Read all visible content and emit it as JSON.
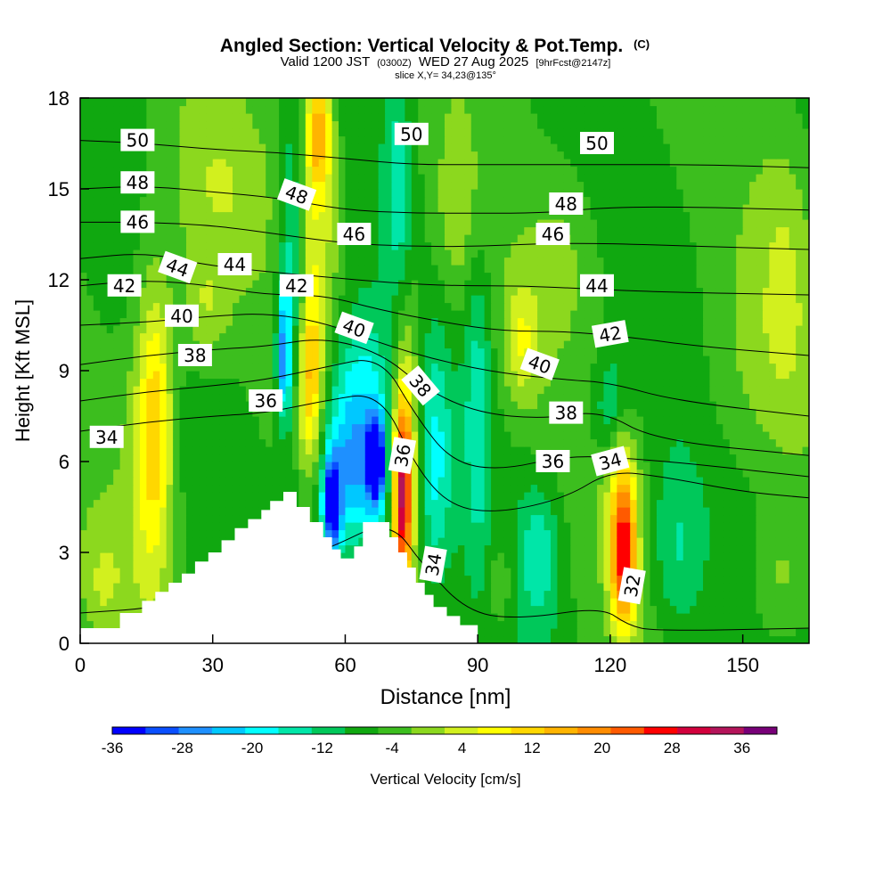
{
  "chart_data": {
    "type": "heatmap",
    "title": "Angled Section: Vertical Velocity & Pot.Temp.",
    "title_unit": "(C)",
    "subtitle_valid": "Valid 1200 JST",
    "subtitle_utc": "(0300Z)",
    "subtitle_date": "WED 27 Aug 2025",
    "subtitle_fcst": "[9hrFcst@2147z]",
    "slice_label": "slice X,Y= 34,23@135°",
    "xlabel": "Distance [nm]",
    "ylabel": "Height [Kft MSL]",
    "xlim": [
      0,
      165
    ],
    "ylim": [
      0,
      18
    ],
    "xticks": [
      "0",
      "30",
      "60",
      "90",
      "120",
      "150"
    ],
    "xtick_values": [
      0,
      30,
      60,
      90,
      120,
      150
    ],
    "yticks": [
      "0",
      "3",
      "6",
      "9",
      "12",
      "15",
      "18"
    ],
    "ytick_values": [
      0,
      3,
      6,
      9,
      12,
      15,
      18
    ],
    "colorbar": {
      "label": "Vertical Velocity [cm/s]",
      "ticks": [
        "-36",
        "-28",
        "-20",
        "-12",
        "-4",
        "4",
        "12",
        "20",
        "28",
        "36"
      ],
      "levels": [
        -36,
        -32,
        -28,
        -24,
        -20,
        -16,
        -12,
        -8,
        -4,
        0,
        4,
        8,
        12,
        16,
        20,
        24,
        28,
        32,
        36,
        40
      ],
      "colors": [
        "#0000ff",
        "#0a4fff",
        "#1e90ff",
        "#00c8ff",
        "#00ffff",
        "#00e6a8",
        "#00c85a",
        "#10a810",
        "#3cbe1e",
        "#8cd81e",
        "#d2f01e",
        "#ffff00",
        "#ffd700",
        "#ffb400",
        "#ff8c00",
        "#ff5a00",
        "#ff0000",
        "#d2003c",
        "#b4145a",
        "#780078"
      ]
    },
    "background_level": -4,
    "velocity_features": [
      {
        "x": 17,
        "z": 7.5,
        "rx": 4,
        "rz": 4.5,
        "value": 16
      },
      {
        "x": 15,
        "z": 6,
        "rx": 6,
        "rz": 6,
        "value": 6
      },
      {
        "x": 30,
        "z": 15,
        "rx": 12,
        "rz": 3,
        "value": 6
      },
      {
        "x": 28,
        "z": 11,
        "rx": 6,
        "rz": 2,
        "value": 8
      },
      {
        "x": 48,
        "z": 12,
        "rx": 3,
        "rz": 5,
        "value": -14
      },
      {
        "x": 46,
        "z": 9.5,
        "rx": 1.5,
        "rz": 2,
        "value": -20
      },
      {
        "x": 52,
        "z": 8.5,
        "rx": 3,
        "rz": 3,
        "value": 20
      },
      {
        "x": 54,
        "z": 17,
        "rx": 3,
        "rz": 2,
        "value": 20
      },
      {
        "x": 54,
        "z": 14,
        "rx": 5,
        "rz": 4,
        "value": 10
      },
      {
        "x": 62,
        "z": 6,
        "rx": 8,
        "rz": 3,
        "value": -24
      },
      {
        "x": 57,
        "z": 4.5,
        "rx": 2,
        "rz": 1.5,
        "value": -30
      },
      {
        "x": 67,
        "z": 6,
        "rx": 2,
        "rz": 1.5,
        "value": -30
      },
      {
        "x": 64,
        "z": 9.5,
        "rx": 7,
        "rz": 2,
        "value": -6
      },
      {
        "x": 73,
        "z": 5,
        "rx": 2,
        "rz": 3,
        "value": 34
      },
      {
        "x": 74,
        "z": 7,
        "rx": 4,
        "rz": 5,
        "value": 14
      },
      {
        "x": 72,
        "z": 15,
        "rx": 3,
        "rz": 4,
        "value": -10
      },
      {
        "x": 80,
        "z": 6,
        "rx": 4,
        "rz": 4,
        "value": -12
      },
      {
        "x": 90,
        "z": 8,
        "rx": 3,
        "rz": 5,
        "value": -10
      },
      {
        "x": 85,
        "z": 14,
        "rx": 5,
        "rz": 3,
        "value": 6
      },
      {
        "x": 100,
        "z": 10,
        "rx": 4,
        "rz": 2,
        "value": 10
      },
      {
        "x": 104,
        "z": 3,
        "rx": 5,
        "rz": 2.5,
        "value": -10
      },
      {
        "x": 110,
        "z": 13,
        "rx": 8,
        "rz": 3,
        "value": 4
      },
      {
        "x": 123,
        "z": 3,
        "rx": 3,
        "rz": 2.5,
        "value": 34
      },
      {
        "x": 122,
        "z": 6,
        "rx": 4,
        "rz": 2,
        "value": 8
      },
      {
        "x": 120,
        "z": 7.5,
        "rx": 4,
        "rz": 2,
        "value": -10
      },
      {
        "x": 135,
        "z": 3,
        "rx": 6,
        "rz": 3,
        "value": -8
      },
      {
        "x": 150,
        "z": 9,
        "rx": 10,
        "rz": 4,
        "value": 4
      },
      {
        "x": 160,
        "z": 12,
        "rx": 6,
        "rz": 5,
        "value": 6
      },
      {
        "x": 158,
        "z": 2,
        "rx": 6,
        "rz": 2,
        "value": 6
      },
      {
        "x": 5,
        "z": 2,
        "rx": 5,
        "rz": 2,
        "value": 6
      },
      {
        "x": 95,
        "z": 2,
        "rx": 3,
        "rz": 1.5,
        "value": 6
      }
    ],
    "terrain": [
      [
        0,
        0.5
      ],
      [
        9,
        0.5
      ],
      [
        9,
        1.0
      ],
      [
        14,
        1.0
      ],
      [
        14,
        1.4
      ],
      [
        17,
        1.4
      ],
      [
        17,
        1.7
      ],
      [
        20,
        1.7
      ],
      [
        20,
        2.0
      ],
      [
        23,
        2.0
      ],
      [
        23,
        2.3
      ],
      [
        26,
        2.3
      ],
      [
        26,
        2.7
      ],
      [
        29,
        2.7
      ],
      [
        29,
        3.0
      ],
      [
        32,
        3.0
      ],
      [
        32,
        3.4
      ],
      [
        35,
        3.4
      ],
      [
        35,
        3.8
      ],
      [
        38,
        3.8
      ],
      [
        38,
        4.1
      ],
      [
        41,
        4.1
      ],
      [
        41,
        4.4
      ],
      [
        43,
        4.4
      ],
      [
        43,
        4.7
      ],
      [
        46,
        4.7
      ],
      [
        46,
        5.0
      ],
      [
        49,
        5.0
      ],
      [
        49,
        4.5
      ],
      [
        52,
        4.5
      ],
      [
        52,
        4.0
      ],
      [
        55,
        4.0
      ],
      [
        55,
        3.5
      ],
      [
        57,
        3.5
      ],
      [
        57,
        3.1
      ],
      [
        59,
        3.1
      ],
      [
        59,
        2.8
      ],
      [
        62,
        2.8
      ],
      [
        62,
        3.2
      ],
      [
        64,
        3.2
      ],
      [
        64,
        4.0
      ],
      [
        70,
        4.0
      ],
      [
        70,
        3.5
      ],
      [
        72,
        3.5
      ],
      [
        72,
        3.0
      ],
      [
        74,
        3.0
      ],
      [
        74,
        2.5
      ],
      [
        76,
        2.5
      ],
      [
        76,
        2.0
      ],
      [
        78,
        2.0
      ],
      [
        78,
        1.6
      ],
      [
        80,
        1.6
      ],
      [
        80,
        1.2
      ],
      [
        83,
        1.2
      ],
      [
        83,
        0.9
      ],
      [
        86,
        0.9
      ],
      [
        86,
        0.6
      ],
      [
        90,
        0.6
      ],
      [
        90,
        0
      ]
    ],
    "isentropes": [
      {
        "value": "32",
        "pts": [
          [
            0,
            1.0
          ],
          [
            20,
            1.2
          ],
          [
            40,
            2.3
          ],
          [
            56,
            3.1
          ],
          [
            70,
            4.1
          ],
          [
            78,
            2.5
          ],
          [
            88,
            1.0
          ],
          [
            100,
            0.8
          ],
          [
            118,
            1.2
          ],
          [
            124,
            0.6
          ],
          [
            130,
            0.4
          ],
          [
            165,
            0.5
          ]
        ]
      },
      {
        "value": "34",
        "pts": [
          [
            0,
            7.0
          ],
          [
            15,
            7.3
          ],
          [
            30,
            7.5
          ],
          [
            42,
            7.6
          ],
          [
            55,
            8.0
          ],
          [
            68,
            8.3
          ],
          [
            76,
            5.8
          ],
          [
            84,
            4.5
          ],
          [
            95,
            4.3
          ],
          [
            110,
            4.8
          ],
          [
            120,
            5.7
          ],
          [
            132,
            5.5
          ],
          [
            150,
            5.0
          ],
          [
            165,
            4.8
          ]
        ]
      },
      {
        "value": "36",
        "pts": [
          [
            0,
            8.0
          ],
          [
            15,
            8.3
          ],
          [
            30,
            8.5
          ],
          [
            42,
            8.7
          ],
          [
            55,
            9.1
          ],
          [
            68,
            9.5
          ],
          [
            76,
            7.5
          ],
          [
            84,
            6.0
          ],
          [
            95,
            5.7
          ],
          [
            110,
            6.2
          ],
          [
            125,
            6.1
          ],
          [
            140,
            5.9
          ],
          [
            165,
            5.5
          ]
        ]
      },
      {
        "value": "38",
        "pts": [
          [
            0,
            9.2
          ],
          [
            15,
            9.5
          ],
          [
            30,
            9.7
          ],
          [
            42,
            9.8
          ],
          [
            55,
            10.1
          ],
          [
            68,
            9.6
          ],
          [
            78,
            8.4
          ],
          [
            90,
            7.6
          ],
          [
            105,
            7.4
          ],
          [
            118,
            7.7
          ],
          [
            130,
            6.7
          ],
          [
            165,
            6.2
          ]
        ]
      },
      {
        "value": "40",
        "pts": [
          [
            0,
            10.5
          ],
          [
            15,
            10.6
          ],
          [
            30,
            10.8
          ],
          [
            42,
            10.9
          ],
          [
            55,
            10.6
          ],
          [
            68,
            9.9
          ],
          [
            82,
            9.3
          ],
          [
            96,
            8.9
          ],
          [
            110,
            8.7
          ],
          [
            120,
            8.6
          ],
          [
            135,
            8.0
          ],
          [
            165,
            7.5
          ]
        ]
      },
      {
        "value": "42",
        "pts": [
          [
            0,
            11.8
          ],
          [
            15,
            12.0
          ],
          [
            30,
            11.8
          ],
          [
            42,
            11.5
          ],
          [
            55,
            11.5
          ],
          [
            68,
            11.0
          ],
          [
            82,
            10.6
          ],
          [
            96,
            10.3
          ],
          [
            110,
            10.3
          ],
          [
            125,
            10.1
          ],
          [
            140,
            9.8
          ],
          [
            165,
            9.5
          ]
        ]
      },
      {
        "value": "44",
        "pts": [
          [
            0,
            12.7
          ],
          [
            15,
            12.9
          ],
          [
            28,
            12.5
          ],
          [
            40,
            12.3
          ],
          [
            55,
            12.1
          ],
          [
            70,
            11.9
          ],
          [
            85,
            11.8
          ],
          [
            100,
            11.8
          ],
          [
            115,
            11.7
          ],
          [
            130,
            11.6
          ],
          [
            165,
            11.5
          ]
        ]
      },
      {
        "value": "46",
        "pts": [
          [
            0,
            13.9
          ],
          [
            15,
            13.9
          ],
          [
            30,
            13.8
          ],
          [
            45,
            13.5
          ],
          [
            60,
            13.2
          ],
          [
            75,
            13.1
          ],
          [
            90,
            13.1
          ],
          [
            105,
            13.2
          ],
          [
            120,
            13.2
          ],
          [
            140,
            13.1
          ],
          [
            165,
            13.0
          ]
        ]
      },
      {
        "value": "48",
        "pts": [
          [
            0,
            15.0
          ],
          [
            15,
            15.1
          ],
          [
            30,
            14.9
          ],
          [
            45,
            14.7
          ],
          [
            60,
            14.3
          ],
          [
            75,
            14.2
          ],
          [
            90,
            14.2
          ],
          [
            105,
            14.2
          ],
          [
            120,
            14.4
          ],
          [
            140,
            14.4
          ],
          [
            165,
            14.3
          ]
        ]
      },
      {
        "value": "50",
        "pts": [
          [
            0,
            16.6
          ],
          [
            15,
            16.5
          ],
          [
            30,
            16.3
          ],
          [
            45,
            16.2
          ],
          [
            60,
            16.0
          ],
          [
            75,
            15.8
          ],
          [
            90,
            15.8
          ],
          [
            105,
            15.8
          ],
          [
            120,
            15.8
          ],
          [
            140,
            15.8
          ],
          [
            165,
            15.7
          ]
        ]
      }
    ],
    "contour_labels": [
      {
        "text": "50",
        "x": 13,
        "z": 16.6,
        "rot": 0
      },
      {
        "text": "50",
        "x": 75,
        "z": 16.8,
        "rot": 0
      },
      {
        "text": "50",
        "x": 117,
        "z": 16.5,
        "rot": 0
      },
      {
        "text": "48",
        "x": 13,
        "z": 15.2,
        "rot": 0
      },
      {
        "text": "48",
        "x": 49,
        "z": 14.8,
        "rot": 20
      },
      {
        "text": "48",
        "x": 110,
        "z": 14.5,
        "rot": 0
      },
      {
        "text": "46",
        "x": 13,
        "z": 13.9,
        "rot": 0
      },
      {
        "text": "46",
        "x": 62,
        "z": 13.5,
        "rot": 0
      },
      {
        "text": "46",
        "x": 107,
        "z": 13.5,
        "rot": 0
      },
      {
        "text": "44",
        "x": 22,
        "z": 12.4,
        "rot": 20
      },
      {
        "text": "44",
        "x": 35,
        "z": 12.5,
        "rot": 0
      },
      {
        "text": "44",
        "x": 117,
        "z": 11.8,
        "rot": 0
      },
      {
        "text": "42",
        "x": 10,
        "z": 11.8,
        "rot": 0
      },
      {
        "text": "42",
        "x": 49,
        "z": 11.8,
        "rot": 0
      },
      {
        "text": "42",
        "x": 120,
        "z": 10.2,
        "rot": -10
      },
      {
        "text": "40",
        "x": 23,
        "z": 10.8,
        "rot": 0
      },
      {
        "text": "40",
        "x": 62,
        "z": 10.4,
        "rot": 20
      },
      {
        "text": "40",
        "x": 104,
        "z": 9.2,
        "rot": 20
      },
      {
        "text": "38",
        "x": 26,
        "z": 9.5,
        "rot": 0
      },
      {
        "text": "38",
        "x": 77,
        "z": 8.5,
        "rot": 50
      },
      {
        "text": "38",
        "x": 110,
        "z": 7.6,
        "rot": 0
      },
      {
        "text": "36",
        "x": 42,
        "z": 8.0,
        "rot": 0
      },
      {
        "text": "36",
        "x": 73,
        "z": 6.2,
        "rot": -80
      },
      {
        "text": "36",
        "x": 107,
        "z": 6.0,
        "rot": 0
      },
      {
        "text": "34",
        "x": 6,
        "z": 6.8,
        "rot": 0
      },
      {
        "text": "34",
        "x": 80,
        "z": 2.6,
        "rot": -80
      },
      {
        "text": "34",
        "x": 120,
        "z": 6.0,
        "rot": -15
      },
      {
        "text": "32",
        "x": 125,
        "z": 1.9,
        "rot": -80
      }
    ]
  }
}
